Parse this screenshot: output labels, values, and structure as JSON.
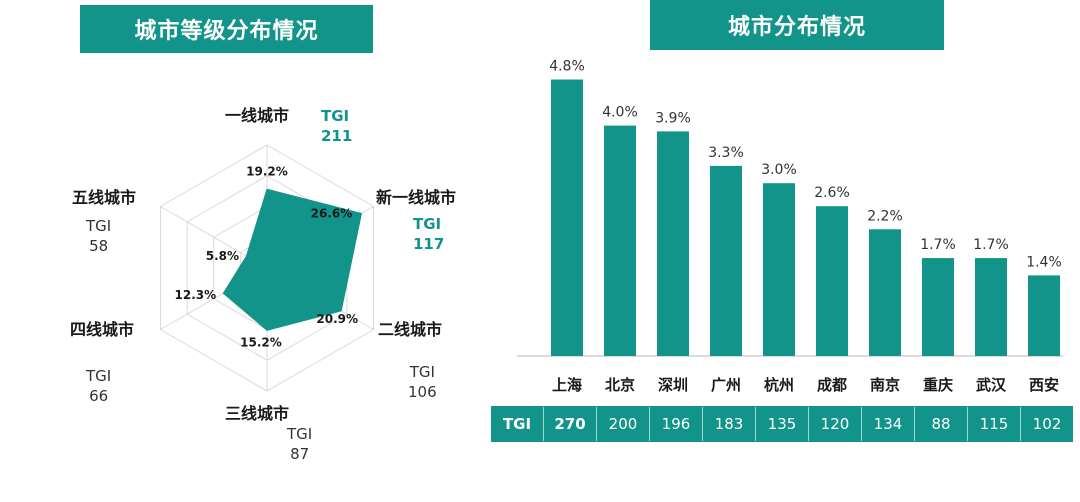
{
  "left_title": "城市等级分布情况",
  "right_title": "城市分布情况",
  "chart_data": [
    {
      "type": "radar",
      "title": "城市等级分布情况",
      "axes": [
        "一线城市",
        "新一线城市",
        "二线城市",
        "三线城市",
        "四线城市",
        "五线城市"
      ],
      "values": [
        19.2,
        26.6,
        20.9,
        15.2,
        12.3,
        5.8
      ],
      "value_labels": [
        "19.2%",
        "26.6%",
        "20.9%",
        "15.2%",
        "12.3%",
        "5.8%"
      ],
      "tgi_label": "TGI",
      "tgi": [
        211,
        117,
        106,
        87,
        66,
        58
      ],
      "highlighted_axes": [
        "一线城市",
        "新一线城市"
      ],
      "max": 30
    },
    {
      "type": "bar",
      "title": "城市分布情况",
      "categories": [
        "上海",
        "北京",
        "深圳",
        "广州",
        "杭州",
        "成都",
        "南京",
        "重庆",
        "武汉",
        "西安"
      ],
      "values": [
        4.8,
        4.0,
        3.9,
        3.3,
        3.0,
        2.6,
        2.2,
        1.7,
        1.7,
        1.4
      ],
      "value_labels": [
        "4.8%",
        "4.0%",
        "3.9%",
        "3.3%",
        "3.0%",
        "2.6%",
        "2.2%",
        "1.7%",
        "1.7%",
        "1.4%"
      ],
      "ylim": [
        0,
        5
      ],
      "tgi_label": "TGI",
      "tgi": [
        270,
        200,
        196,
        183,
        135,
        120,
        134,
        88,
        115,
        102
      ]
    }
  ],
  "colors": {
    "accent": "#12948a",
    "grid": "#d9d9d9",
    "text": "#1a1a1a"
  }
}
